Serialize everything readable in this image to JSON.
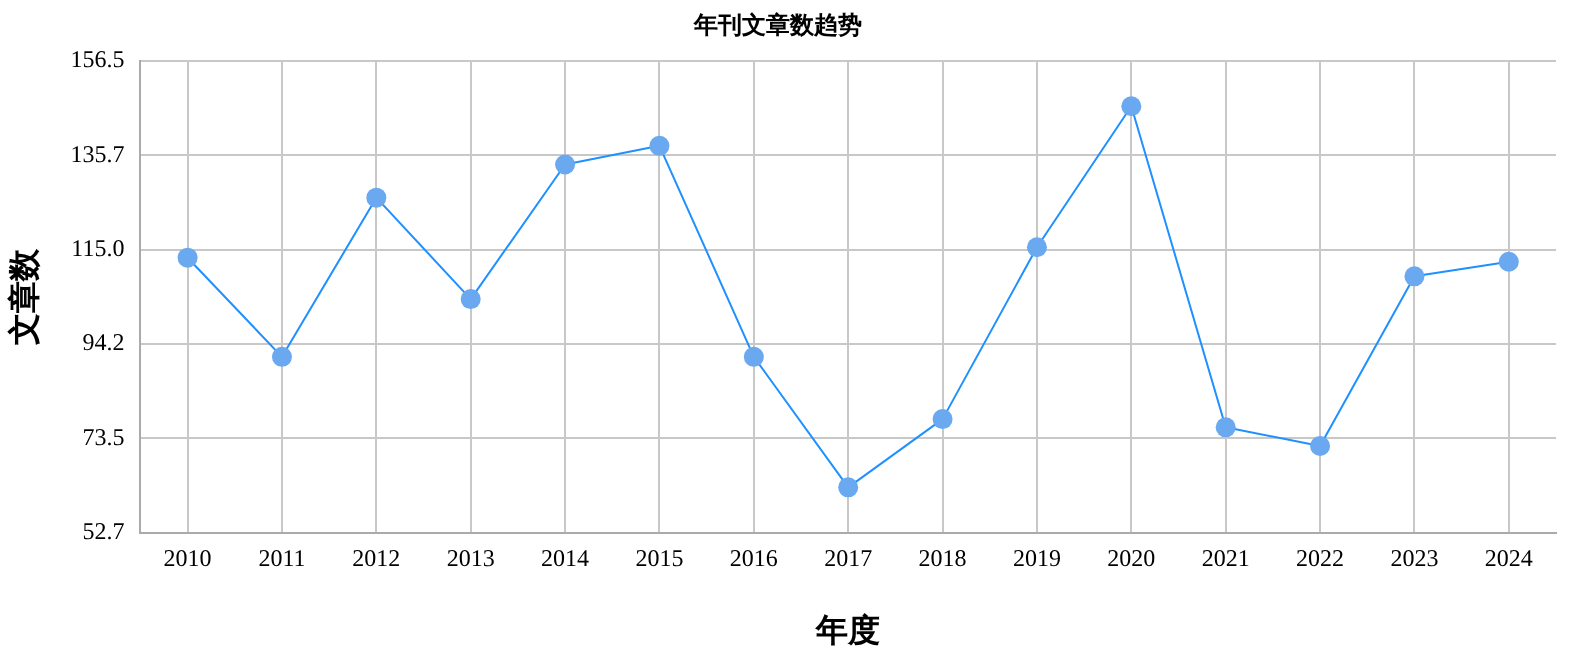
{
  "chart_data": {
    "type": "line",
    "title": "年刊文章数趋势",
    "xlabel": "年度",
    "ylabel": "文章数",
    "categories": [
      "2010",
      "2011",
      "2012",
      "2013",
      "2014",
      "2015",
      "2016",
      "2017",
      "2018",
      "2019",
      "2020",
      "2021",
      "2022",
      "2023",
      "2024"
    ],
    "series": [
      {
        "color": "#1e90ff",
        "values": [
          113.2,
          91.4,
          126.4,
          104.1,
          133.7,
          137.8,
          91.4,
          62.7,
          77.7,
          115.5,
          146.5,
          75.9,
          71.8,
          109.1,
          112.3
        ]
      }
    ],
    "ylim": [
      52.7,
      156.5
    ],
    "yticks": [
      52.7,
      73.5,
      94.2,
      {
        "value": 115.0,
        "label": "115.0"
      },
      135.7,
      156.5
    ],
    "grid": true,
    "legend": false,
    "marker": "circle",
    "line_style": "solid"
  }
}
